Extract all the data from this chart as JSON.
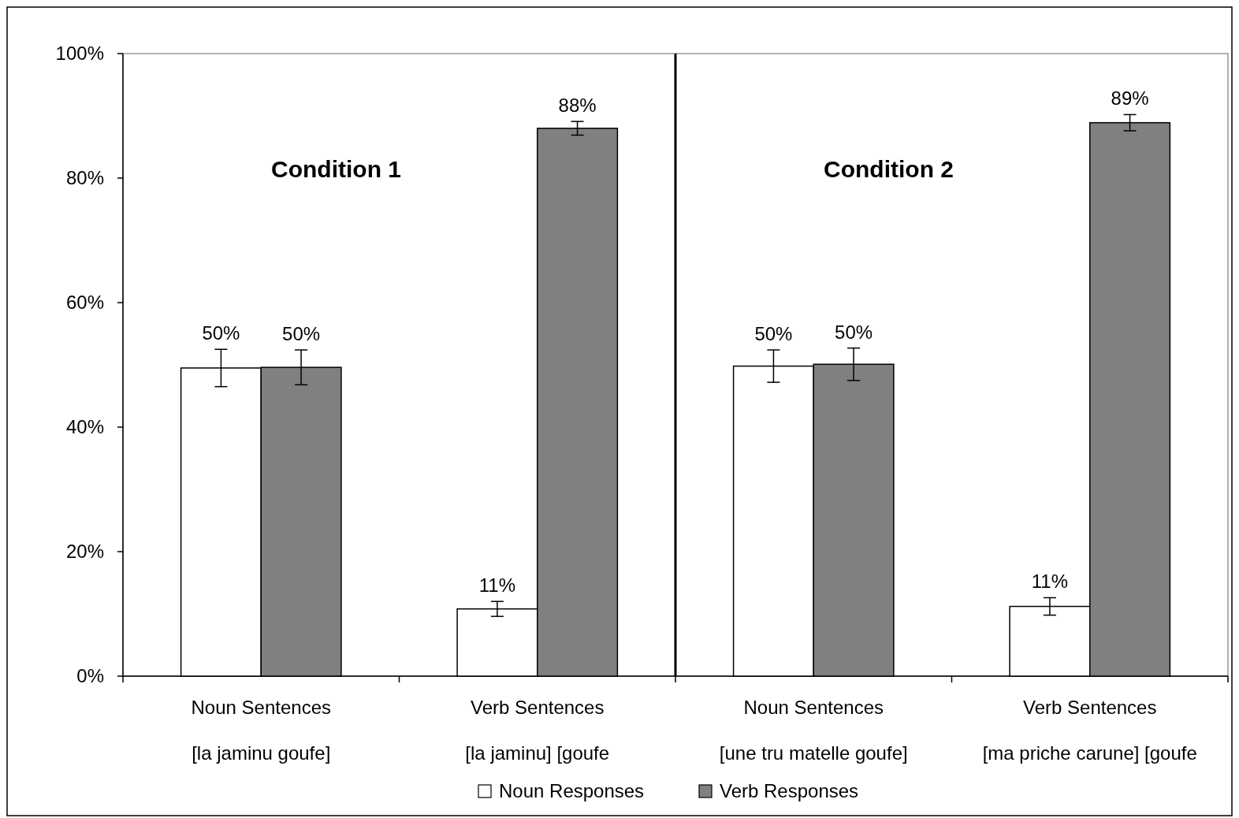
{
  "chart_data": {
    "type": "bar",
    "categories": [
      "Noun Sentences\n[la jaminu goufe]",
      "Verb Sentences\n[la jaminu] [goufe",
      "Noun Sentences\n[une tru matelle goufe]",
      "Verb Sentences\n[ma priche carune] [goufe"
    ],
    "series": [
      {
        "name": "Noun Responses",
        "color": "#ffffff",
        "values": [
          49.5,
          10.8,
          49.8,
          11.2
        ],
        "errors": [
          3,
          1.2,
          2.6,
          1.4
        ],
        "value_labels": [
          "50%",
          "11%",
          "50%",
          "11%"
        ]
      },
      {
        "name": "Verb Responses",
        "color": "#808080",
        "values": [
          49.6,
          88,
          50.1,
          88.9
        ],
        "errors": [
          2.8,
          1.1,
          2.6,
          1.3
        ],
        "value_labels": [
          "50%",
          "88%",
          "50%",
          "89%"
        ]
      }
    ],
    "ylim": [
      0,
      100
    ],
    "yticks": [
      {
        "value": 0,
        "label": "0%"
      },
      {
        "value": 20,
        "label": "20%"
      },
      {
        "value": 40,
        "label": "40%"
      },
      {
        "value": 60,
        "label": "60%"
      },
      {
        "value": 80,
        "label": "80%"
      },
      {
        "value": 100,
        "label": "100%"
      }
    ],
    "annotations": [
      "Condition 1",
      "Condition 2"
    ],
    "legend": "bottom",
    "grid": false
  }
}
